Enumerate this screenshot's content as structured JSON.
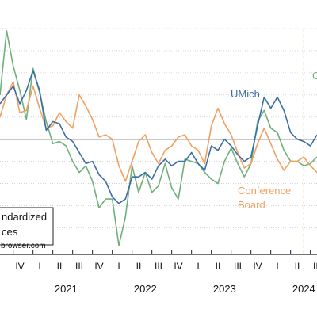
{
  "chart_data": {
    "type": "line",
    "title": "",
    "xlabel": "",
    "ylabel": "",
    "x_start": "2020-08",
    "x_end": "2024-08",
    "ylim": [
      -2.6,
      2.5
    ],
    "grid": true,
    "zero_line": 0,
    "quarter_labels": [
      "I",
      "II",
      "III",
      "IV"
    ],
    "years": [
      "2021",
      "2022",
      "2023",
      "2024"
    ],
    "vline": "2024-06",
    "colors": {
      "umich": "#3b6ea5",
      "conference_board": "#f0a060",
      "third": "#6fb07a",
      "vline": "#e8a040",
      "grid": "#bbbbbb",
      "zero": "#222222"
    },
    "series": [
      {
        "name": "UMich",
        "label_lines": [
          "UMich"
        ],
        "x": [
          "2020-08",
          "2020-09",
          "2020-10",
          "2020-11",
          "2020-12",
          "2021-01",
          "2021-02",
          "2021-03",
          "2021-04",
          "2021-05",
          "2021-06",
          "2021-07",
          "2021-08",
          "2021-09",
          "2021-10",
          "2021-11",
          "2021-12",
          "2022-01",
          "2022-02",
          "2022-03",
          "2022-04",
          "2022-05",
          "2022-06",
          "2022-07",
          "2022-08",
          "2022-09",
          "2022-10",
          "2022-11",
          "2022-12",
          "2023-01",
          "2023-02",
          "2023-03",
          "2023-04",
          "2023-05",
          "2023-06",
          "2023-07",
          "2023-08",
          "2023-09",
          "2023-10",
          "2023-11",
          "2023-12",
          "2024-01",
          "2024-02",
          "2024-03",
          "2024-04",
          "2024-05",
          "2024-06",
          "2024-07",
          "2024-08"
        ],
        "y": [
          0.8,
          1.0,
          1.2,
          0.8,
          1.1,
          1.55,
          1.1,
          0.2,
          0.4,
          0.35,
          0.05,
          -0.05,
          -0.3,
          -0.55,
          -0.5,
          -0.8,
          -0.95,
          -1.3,
          -1.45,
          -1.35,
          -0.85,
          -0.85,
          -0.75,
          -0.9,
          -0.6,
          -0.45,
          -0.6,
          -0.5,
          -0.5,
          -0.3,
          -0.55,
          -0.7,
          -0.15,
          -0.25,
          0.0,
          -0.15,
          -0.35,
          -0.5,
          -0.4,
          0.3,
          0.95,
          0.7,
          0.95,
          0.65,
          0.15,
          0.0,
          -0.05,
          -0.15,
          0.1
        ]
      },
      {
        "name": "Conference Board",
        "label_lines": [
          "Conference",
          "Board"
        ],
        "x": [
          "2020-08",
          "2020-09",
          "2020-10",
          "2020-11",
          "2020-12",
          "2021-01",
          "2021-02",
          "2021-03",
          "2021-04",
          "2021-05",
          "2021-06",
          "2021-07",
          "2021-08",
          "2021-09",
          "2021-10",
          "2021-11",
          "2021-12",
          "2022-01",
          "2022-02",
          "2022-03",
          "2022-04",
          "2022-05",
          "2022-06",
          "2022-07",
          "2022-08",
          "2022-09",
          "2022-10",
          "2022-11",
          "2022-12",
          "2023-01",
          "2023-02",
          "2023-03",
          "2023-04",
          "2023-05",
          "2023-06",
          "2023-07",
          "2023-08",
          "2023-09",
          "2023-10",
          "2023-11",
          "2023-12",
          "2024-01",
          "2024-02",
          "2024-03",
          "2024-04",
          "2024-05",
          "2024-06",
          "2024-07",
          "2024-08"
        ],
        "y": [
          0.5,
          1.0,
          1.3,
          0.6,
          0.65,
          1.2,
          0.7,
          0.25,
          0.3,
          0.6,
          0.4,
          0.25,
          1.0,
          0.75,
          0.45,
          0.05,
          0.1,
          0.0,
          -0.6,
          -0.95,
          -0.5,
          -0.05,
          0.1,
          -0.3,
          -0.55,
          -0.25,
          -0.15,
          0.05,
          0.1,
          -0.15,
          -0.25,
          -0.55,
          0.3,
          0.7,
          0.35,
          0.1,
          -0.3,
          -0.65,
          -0.55,
          -0.1,
          0.25,
          -0.1,
          -0.45,
          -0.7,
          -0.5,
          -0.5,
          -0.4,
          -0.6,
          -0.75
        ]
      },
      {
        "name": "",
        "label_lines": [
          "C"
        ],
        "x": [
          "2020-08",
          "2020-09",
          "2020-10",
          "2020-11",
          "2020-12",
          "2021-01",
          "2021-02",
          "2021-03",
          "2021-04",
          "2021-05",
          "2021-06",
          "2021-07",
          "2021-08",
          "2021-09",
          "2021-10",
          "2021-11",
          "2021-12",
          "2022-01",
          "2022-02",
          "2022-03",
          "2022-04",
          "2022-05",
          "2022-06",
          "2022-07",
          "2022-08",
          "2022-09",
          "2022-10",
          "2022-11",
          "2022-12",
          "2023-01",
          "2023-02",
          "2023-03",
          "2023-04",
          "2023-05",
          "2023-06",
          "2023-07",
          "2023-08",
          "2023-09",
          "2023-10",
          "2023-11",
          "2023-12",
          "2024-01",
          "2024-02",
          "2024-03",
          "2024-04",
          "2024-05",
          "2024-06",
          "2024-07",
          "2024-08"
        ],
        "y": [
          1.0,
          2.45,
          1.65,
          1.1,
          0.45,
          1.6,
          1.05,
          0.4,
          -0.1,
          -0.05,
          -0.15,
          -0.5,
          -0.75,
          -0.6,
          -0.95,
          -1.55,
          -1.35,
          -1.35,
          -2.4,
          -1.75,
          -0.6,
          -1.2,
          -0.75,
          -1.2,
          -1.05,
          -0.55,
          -1.1,
          -1.35,
          -0.45,
          -0.5,
          -0.55,
          -0.75,
          -0.9,
          -1.0,
          -0.5,
          -0.2,
          -0.55,
          -0.85,
          -0.55,
          0.4,
          0.65,
          0.25,
          0.15,
          -0.25,
          -0.5,
          -0.5,
          -0.6,
          -0.55,
          -0.4
        ]
      }
    ],
    "legend_lines": [
      "ndardized",
      "ces"
    ],
    "legend_source": "browser.com"
  }
}
